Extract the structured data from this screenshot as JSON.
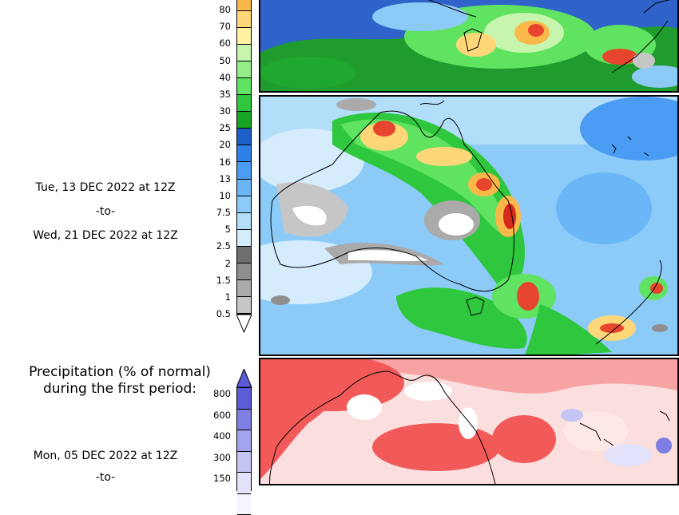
{
  "period2": {
    "start": "Tue, 13 DEC 2022 at 12Z",
    "to": "-to-",
    "end": "Wed, 21 DEC 2022 at 12Z"
  },
  "precip_legend": {
    "labels": [
      "80",
      "70",
      "60",
      "50",
      "40",
      "35",
      "30",
      "25",
      "20",
      "16",
      "13",
      "10",
      "7.5",
      "5",
      "2.5",
      "2",
      "1.5",
      "1",
      "0.5"
    ],
    "colors": [
      "#fbb84a",
      "#ffd778",
      "#fff3a3",
      "#c7f5ae",
      "#96ee8a",
      "#5fe360",
      "#2fc73d",
      "#16a623",
      "#1c5fc8",
      "#2e7fe6",
      "#4a9bf2",
      "#6ab6f6",
      "#8ccbf8",
      "#b2def9",
      "#d4ecfb",
      "#6e6e6e",
      "#8e8e8e",
      "#aaaaaa",
      "#c6c6c6"
    ]
  },
  "pct_section": {
    "title_line1": "Precipitation (% of normal)",
    "title_line2": "during the first period:",
    "labels": [
      "800",
      "600",
      "400",
      "300",
      "150"
    ],
    "colors": [
      "#5b5bd6",
      "#7f7fe3",
      "#a3a3ee",
      "#c5c5f5",
      "#e2e2fb",
      "#f5f5ff"
    ],
    "start": "Mon, 05 DEC 2022 at 12Z",
    "to": "-to-"
  }
}
